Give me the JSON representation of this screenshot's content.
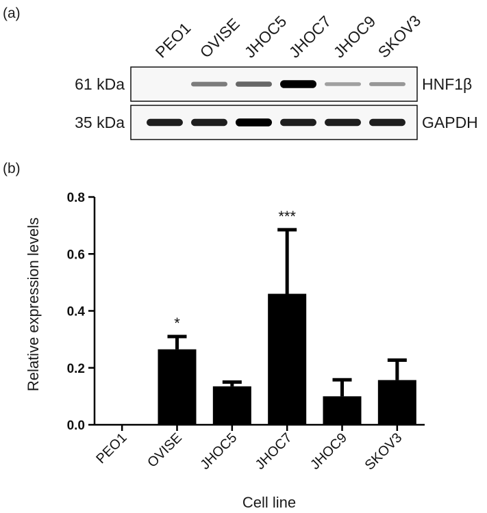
{
  "panel_a": {
    "label": "(a)",
    "lanes": [
      "PEO1",
      "OVISE",
      "JHOC5",
      "JHOC7",
      "JHOC9",
      "SKOV3"
    ],
    "rows": [
      {
        "marker": "61 kDa",
        "protein": "HNF1β",
        "intensity": [
          0.0,
          0.35,
          0.45,
          0.95,
          0.18,
          0.22
        ]
      },
      {
        "marker": "35 kDa",
        "protein": "GAPDH",
        "intensity": [
          0.8,
          0.8,
          0.95,
          0.8,
          0.8,
          0.8
        ]
      }
    ]
  },
  "chart_data": {
    "type": "bar",
    "title": "(b)",
    "categories": [
      "PEO1",
      "OVISE",
      "JHOC5",
      "JHOC7",
      "JHOC9",
      "SKOV3"
    ],
    "values": [
      0.0,
      0.265,
      0.135,
      0.46,
      0.1,
      0.157
    ],
    "error_upper": [
      0.0,
      0.045,
      0.015,
      0.225,
      0.058,
      0.07
    ],
    "significance": [
      "",
      "*",
      "",
      "***",
      "",
      ""
    ],
    "xlabel": "Cell line",
    "ylabel": "Relative expression levels",
    "ylim": [
      0,
      0.8
    ],
    "yticks": [
      "0.0",
      "0.2",
      "0.4",
      "0.6",
      "0.8"
    ],
    "bar_color": "#000000",
    "grid": false,
    "legend": "none"
  }
}
